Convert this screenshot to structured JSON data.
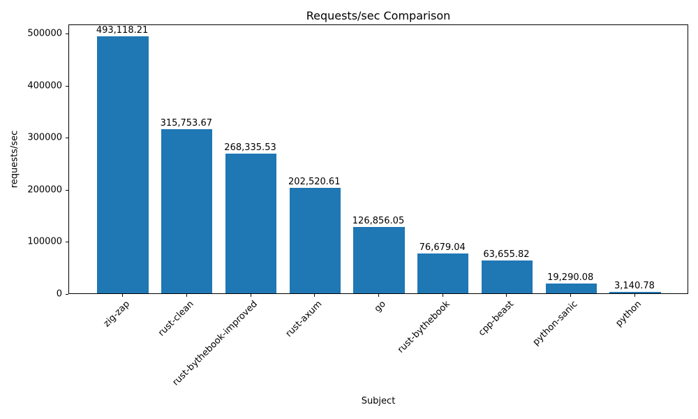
{
  "chart_data": {
    "type": "bar",
    "title": "Requests/sec Comparison",
    "xlabel": "Subject",
    "ylabel": "requests/sec",
    "categories": [
      "zig-zap",
      "rust-clean",
      "rust-bythebook-improved",
      "rust-axum",
      "go",
      "rust-bythebook",
      "cpp-beast",
      "python-sanic",
      "python"
    ],
    "values": [
      493118.21,
      315753.67,
      268335.53,
      202520.61,
      126856.05,
      76679.04,
      63655.82,
      19290.08,
      3140.78
    ],
    "value_labels": [
      "493,118.21",
      "315,753.67",
      "268,335.53",
      "202,520.61",
      "126,856.05",
      "76,679.04",
      "63,655.82",
      "19,290.08",
      "3,140.78"
    ],
    "yticks": [
      0,
      100000,
      200000,
      300000,
      400000,
      500000
    ],
    "ytick_labels": [
      "0",
      "100000",
      "200000",
      "300000",
      "400000",
      "500000"
    ],
    "ylim": [
      0,
      517774
    ],
    "bar_color": "#1f77b4",
    "grid": false,
    "legend": null
  }
}
